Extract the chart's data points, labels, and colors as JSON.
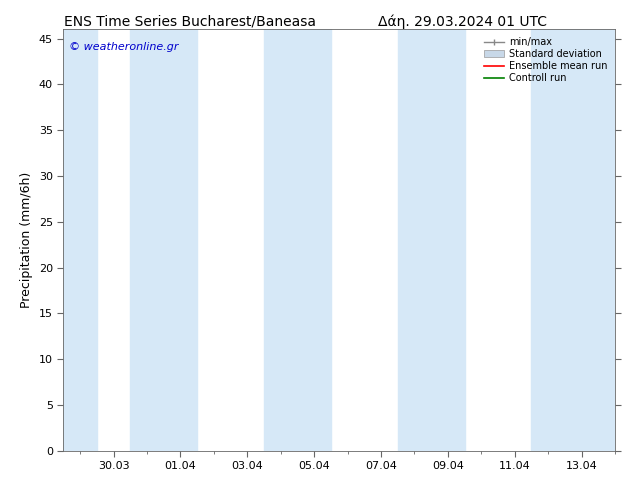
{
  "title_left": "ENS Time Series Bucharest/Baneasa",
  "title_right": "Δάη. 29.03.2024 01 UTC",
  "ylabel": "Precipitation (mm/6h)",
  "ylim": [
    0,
    46
  ],
  "yticks": [
    0,
    5,
    10,
    15,
    20,
    25,
    30,
    35,
    40,
    45
  ],
  "xtick_labels": [
    "30.03",
    "01.04",
    "03.04",
    "05.04",
    "07.04",
    "09.04",
    "11.04",
    "13.04"
  ],
  "xtick_positions": [
    1.0,
    3.0,
    5.0,
    7.0,
    9.0,
    11.0,
    13.0,
    15.0
  ],
  "xlim": [
    -0.5,
    16.0
  ],
  "shaded_bands": [
    [
      -0.5,
      0.5
    ],
    [
      1.5,
      3.5
    ],
    [
      5.5,
      7.5
    ],
    [
      9.5,
      11.5
    ],
    [
      13.5,
      16.0
    ]
  ],
  "shade_color": "#d6e8f7",
  "bg_color": "#ffffff",
  "plot_bg_color": "#ffffff",
  "watermark": "© weatheronline.gr",
  "watermark_color": "#0000cc",
  "legend_labels": [
    "min/max",
    "Standard deviation",
    "Ensemble mean run",
    "Controll run"
  ],
  "title_fontsize": 10,
  "tick_fontsize": 8,
  "ylabel_fontsize": 9
}
